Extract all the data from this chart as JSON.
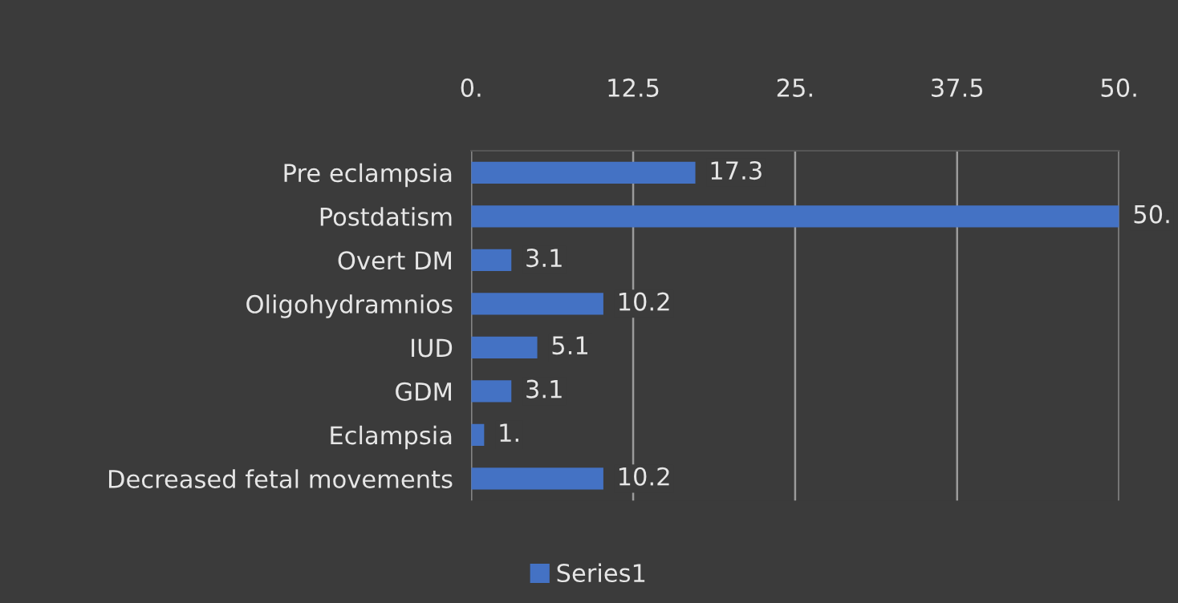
{
  "chart_data": {
    "type": "bar",
    "orientation": "horizontal",
    "categories": [
      "Pre eclampsia",
      "Postdatism",
      "Overt DM",
      "Oligohydramnios",
      "IUD",
      "GDM",
      "Eclampsia",
      "Decreased fetal movements"
    ],
    "series": [
      {
        "name": "Series1",
        "color": "#4472c4",
        "values": [
          17.3,
          50,
          3.1,
          10.2,
          5.1,
          3.1,
          1,
          10.2
        ],
        "value_labels": [
          "17.3",
          "50.",
          "3.1",
          "10.2",
          "5.1",
          "3.1",
          "1.",
          "10.2"
        ]
      }
    ],
    "xlim": [
      0,
      50
    ],
    "xticks": [
      {
        "value": 0,
        "label": "0."
      },
      12.5,
      {
        "value": 25,
        "label": "25."
      },
      37.5,
      {
        "value": 50,
        "label": "50."
      }
    ],
    "grid": "x",
    "legend": "bottom"
  }
}
